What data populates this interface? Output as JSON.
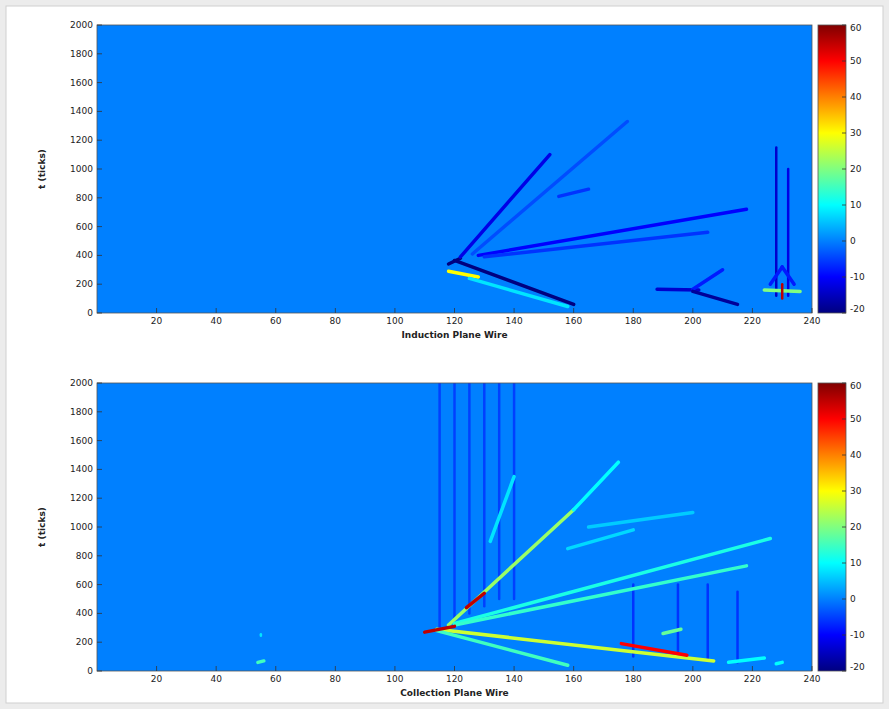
{
  "chart_data": [
    {
      "type": "heatmap",
      "x_label": "Induction Plane Wire",
      "y_label": "t (ticks)",
      "xlim": [
        0,
        240
      ],
      "ylim": [
        0,
        2000
      ],
      "xticks": [
        20,
        40,
        60,
        80,
        100,
        120,
        140,
        160,
        180,
        200,
        220,
        240
      ],
      "yticks": [
        0,
        200,
        400,
        600,
        800,
        1000,
        1200,
        1400,
        1600,
        1800,
        2000
      ],
      "colorbar": {
        "range": [
          -20,
          60
        ],
        "ticks": [
          -20,
          -10,
          0,
          10,
          20,
          30,
          40,
          50,
          60
        ]
      },
      "background": 0,
      "tracks": [
        {
          "x": [
            120,
            160
          ],
          "y": [
            365,
            60
          ],
          "value": -20
        },
        {
          "x": [
            118,
            128
          ],
          "y": [
            290,
            250
          ],
          "value": 30
        },
        {
          "x": [
            125,
            158
          ],
          "y": [
            240,
            45
          ],
          "value": 8
        },
        {
          "x": [
            118,
            122
          ],
          "y": [
            340,
            380
          ],
          "value": -20
        },
        {
          "x": [
            122,
            152
          ],
          "y": [
            390,
            1100
          ],
          "value": -12
        },
        {
          "x": [
            126,
            178
          ],
          "y": [
            410,
            1330
          ],
          "value": -4
        },
        {
          "x": [
            128,
            218
          ],
          "y": [
            400,
            720
          ],
          "value": -10
        },
        {
          "x": [
            130,
            205
          ],
          "y": [
            390,
            560
          ],
          "value": -6
        },
        {
          "x": [
            155,
            165
          ],
          "y": [
            810,
            860
          ],
          "value": -6
        },
        {
          "x": [
            188,
            202
          ],
          "y": [
            165,
            160
          ],
          "value": -14
        },
        {
          "x": [
            200,
            210
          ],
          "y": [
            165,
            300
          ],
          "value": -8
        },
        {
          "x": [
            200,
            215
          ],
          "y": [
            150,
            60
          ],
          "value": -18
        },
        {
          "x": [
            228,
            228
          ],
          "y": [
            120,
            1150
          ],
          "value": -14
        },
        {
          "x": [
            232,
            232
          ],
          "y": [
            120,
            1000
          ],
          "value": -12
        },
        {
          "x": [
            226,
            230
          ],
          "y": [
            200,
            320
          ],
          "value": -8
        },
        {
          "x": [
            234,
            230
          ],
          "y": [
            200,
            320
          ],
          "value": -8
        },
        {
          "x": [
            224,
            236
          ],
          "y": [
            160,
            150
          ],
          "value": 20
        },
        {
          "x": [
            230,
            230
          ],
          "y": [
            100,
            200
          ],
          "value": 55
        }
      ]
    },
    {
      "type": "heatmap",
      "x_label": "Collection Plane Wire",
      "y_label": "t (ticks)",
      "xlim": [
        0,
        240
      ],
      "ylim": [
        0,
        2000
      ],
      "xticks": [
        20,
        40,
        60,
        80,
        100,
        120,
        140,
        160,
        180,
        200,
        220,
        240
      ],
      "yticks": [
        0,
        200,
        400,
        600,
        800,
        1000,
        1200,
        1400,
        1600,
        1800,
        2000
      ],
      "colorbar": {
        "range": [
          -20,
          60
        ],
        "ticks": [
          -20,
          -10,
          0,
          10,
          20,
          30,
          40,
          50,
          60
        ]
      },
      "background": 0,
      "tracks": [
        {
          "x": [
            115,
            115
          ],
          "y": [
            300,
            2000
          ],
          "value": -5
        },
        {
          "x": [
            120,
            120
          ],
          "y": [
            350,
            2000
          ],
          "value": -5
        },
        {
          "x": [
            125,
            125
          ],
          "y": [
            400,
            2000
          ],
          "value": -5
        },
        {
          "x": [
            130,
            130
          ],
          "y": [
            450,
            2000
          ],
          "value": -5
        },
        {
          "x": [
            135,
            135
          ],
          "y": [
            500,
            2000
          ],
          "value": -5
        },
        {
          "x": [
            140,
            140
          ],
          "y": [
            500,
            2000
          ],
          "value": -5
        },
        {
          "x": [
            180,
            180
          ],
          "y": [
            100,
            600
          ],
          "value": -6
        },
        {
          "x": [
            195,
            195
          ],
          "y": [
            100,
            600
          ],
          "value": -6
        },
        {
          "x": [
            205,
            205
          ],
          "y": [
            80,
            600
          ],
          "value": -6
        },
        {
          "x": [
            215,
            215
          ],
          "y": [
            60,
            550
          ],
          "value": -6
        },
        {
          "x": [
            118,
            160
          ],
          "y": [
            320,
            1120
          ],
          "value": 22
        },
        {
          "x": [
            160,
            175
          ],
          "y": [
            1120,
            1450
          ],
          "value": 10
        },
        {
          "x": [
            132,
            140
          ],
          "y": [
            900,
            1350
          ],
          "value": 8
        },
        {
          "x": [
            158,
            180
          ],
          "y": [
            850,
            980
          ],
          "value": 7
        },
        {
          "x": [
            165,
            200
          ],
          "y": [
            1000,
            1100
          ],
          "value": 6
        },
        {
          "x": [
            120,
            226
          ],
          "y": [
            330,
            920
          ],
          "value": 12
        },
        {
          "x": [
            120,
            218
          ],
          "y": [
            320,
            730
          ],
          "value": 14
        },
        {
          "x": [
            114,
            207
          ],
          "y": [
            290,
            70
          ],
          "value": 26
        },
        {
          "x": [
            114,
            158
          ],
          "y": [
            280,
            40
          ],
          "value": 15
        },
        {
          "x": [
            54,
            56
          ],
          "y": [
            60,
            70
          ],
          "value": 15
        },
        {
          "x": [
            55,
            55
          ],
          "y": [
            245,
            255
          ],
          "value": 8
        },
        {
          "x": [
            212,
            224
          ],
          "y": [
            60,
            90
          ],
          "value": 10
        },
        {
          "x": [
            228,
            230
          ],
          "y": [
            50,
            60
          ],
          "value": 10
        },
        {
          "x": [
            190,
            196
          ],
          "y": [
            260,
            290
          ],
          "value": 18
        },
        {
          "x": [
            176,
            198
          ],
          "y": [
            190,
            110
          ],
          "value": 50
        },
        {
          "x": [
            124,
            130
          ],
          "y": [
            440,
            540
          ],
          "value": 55
        },
        {
          "x": [
            110,
            120
          ],
          "y": [
            270,
            310
          ],
          "value": 55
        }
      ]
    }
  ]
}
